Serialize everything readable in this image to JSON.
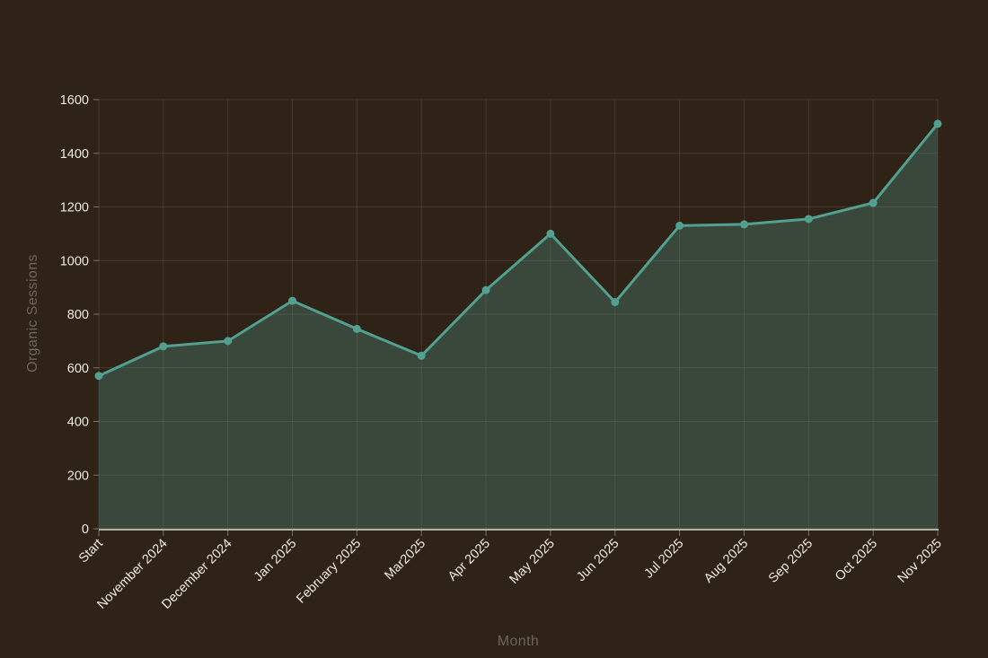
{
  "chart_data": {
    "type": "area",
    "title": "",
    "xlabel": "Month",
    "ylabel": "Organic Sessions",
    "categories": [
      "Start",
      "November 2024",
      "December 2024",
      "Jan 2025",
      "February 2025",
      "Mar2025",
      "Apr 2025",
      "May 2025",
      "Jun 2025",
      "Jul 2025",
      "Aug 2025",
      "Sep 2025",
      "Oct 2025",
      "Nov 2025"
    ],
    "values": [
      570,
      680,
      700,
      850,
      745,
      645,
      890,
      1100,
      845,
      1130,
      1135,
      1155,
      1215,
      1510
    ],
    "ylim": [
      0,
      1600
    ],
    "ytick_step": 200,
    "yticks": [
      0,
      200,
      400,
      600,
      800,
      1000,
      1200,
      1400,
      1600
    ],
    "grid": true,
    "legend_position": "none",
    "x_label_angle": -45
  },
  "colors": {
    "background": "#2f2318",
    "line": "#52a08f",
    "area_opacity": 0.3,
    "grid": "rgba(255,255,255,0.10)",
    "axis_line": "#b5afa5",
    "tick": "rgba(214,206,194,0.45)",
    "tick_label": "#f0ebe1",
    "axis_title": "#6d665c"
  }
}
